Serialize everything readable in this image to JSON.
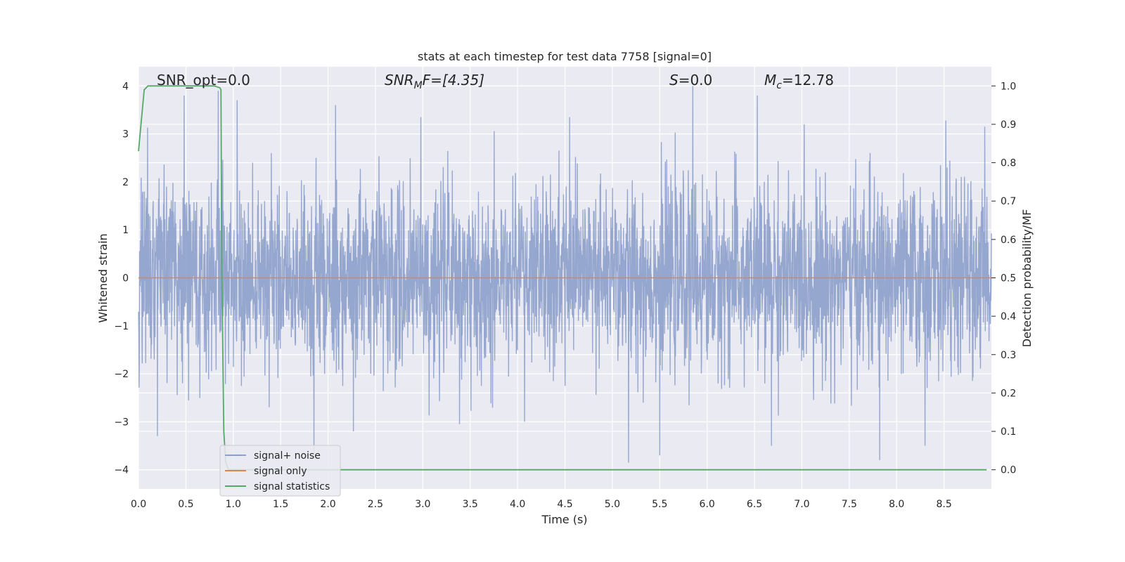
{
  "chart_data": {
    "type": "line",
    "title": "stats at each timestep for test data 7758 [signal=0]",
    "xlabel": "Time (s)",
    "ylabel": "Whitened strain",
    "y2label": "Detection probability/MF",
    "xlim": [
      0.0,
      9.0
    ],
    "ylim": [
      -4.4,
      4.4
    ],
    "y2lim": [
      -0.05,
      1.05
    ],
    "xticks": [
      "0.0",
      "0.5",
      "1.0",
      "1.5",
      "2.0",
      "2.5",
      "3.0",
      "3.5",
      "4.0",
      "4.5",
      "5.0",
      "5.5",
      "6.0",
      "6.5",
      "7.0",
      "7.5",
      "8.0",
      "8.5"
    ],
    "yticks": [
      "4",
      "3",
      "2",
      "1",
      "0",
      "−1",
      "−2",
      "−3",
      "−4"
    ],
    "y2ticks": [
      "1.0",
      "0.9",
      "0.8",
      "0.7",
      "0.6",
      "0.5",
      "0.4",
      "0.3",
      "0.2",
      "0.1",
      "0.0"
    ],
    "grid": true,
    "legend_placement": "lower-left",
    "annotations": {
      "snr_opt": "SNR_opt=0.0",
      "snr_mf_main": "SNR",
      "snr_mf_sub": "M",
      "snr_mf_rest": "F=[4.35]",
      "s_main": "S",
      "s_rest": "=0.0",
      "mc_main": "M",
      "mc_sub": "c",
      "mc_rest": "=12.78"
    },
    "series": [
      {
        "name": "signal+ noise",
        "color": "#8da0cb",
        "axis": "left",
        "description_values": "whitened noise, std ~0.9, samples over 0-9 s",
        "peaks": [
          [
            0.48,
            3.8
          ],
          [
            0.84,
            3.9
          ],
          [
            1.04,
            3.7
          ],
          [
            2.08,
            3.6
          ],
          [
            2.98,
            3.35
          ],
          [
            4.55,
            3.35
          ],
          [
            5.85,
            4.0
          ],
          [
            6.53,
            3.8
          ],
          [
            8.52,
            3.28
          ],
          [
            8.93,
            3.15
          ],
          [
            5.17,
            -3.85
          ],
          [
            7.82,
            -3.8
          ],
          [
            1.85,
            -3.7
          ],
          [
            5.5,
            -3.7
          ],
          [
            6.68,
            -3.5
          ],
          [
            8.3,
            -3.5
          ],
          [
            0.2,
            -3.3
          ]
        ]
      },
      {
        "name": "signal only",
        "color": "#dd8452",
        "axis": "left",
        "x": [
          0.0,
          9.0
        ],
        "y": [
          0.0,
          0.0
        ]
      },
      {
        "name": "signal statistics",
        "color": "#55a868",
        "axis": "right",
        "x": [
          0.0,
          0.06,
          0.1,
          0.2,
          0.4,
          0.6,
          0.8,
          0.86,
          0.87,
          0.88,
          0.9,
          0.92,
          0.95,
          1.0,
          2.0,
          4.0,
          6.0,
          8.0,
          8.95
        ],
        "y": [
          0.83,
          0.99,
          1.0,
          1.0,
          1.0,
          1.0,
          1.0,
          0.995,
          0.99,
          0.5,
          0.1,
          0.02,
          0.0,
          0.0,
          0.0,
          0.0,
          0.0,
          0.0,
          0.0
        ]
      }
    ]
  }
}
